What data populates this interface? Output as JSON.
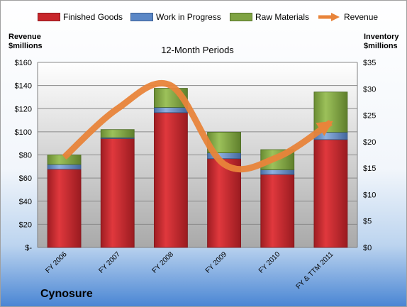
{
  "brand": "Cynosure",
  "colors": {
    "finished_goods": "#c8262b",
    "work_in_progress": "#5b87c6",
    "raw_materials": "#7fa343",
    "revenue_line": "#e8843a"
  },
  "chart_data": {
    "type": "bar",
    "stacked": true,
    "title": "12-Month Periods",
    "ylabel_left": "Revenue\n$millions",
    "ylabel_right": "Inventory\n$millions",
    "categories": [
      "FY 2006",
      "FY 2007",
      "FY 2008",
      "FY 2009",
      "FY 2010",
      "FY & TTM 2011"
    ],
    "series": [
      {
        "name": "Finished Goods",
        "axis": "right",
        "values": [
          14.8,
          20.6,
          25.5,
          16.8,
          13.8,
          20.4
        ]
      },
      {
        "name": "Work in Progress",
        "axis": "right",
        "values": [
          0.9,
          0.2,
          1.0,
          1.1,
          0.9,
          1.4
        ]
      },
      {
        "name": "Raw Materials",
        "axis": "right",
        "values": [
          1.8,
          1.5,
          3.6,
          3.9,
          3.8,
          7.6
        ]
      }
    ],
    "line_series": {
      "name": "Revenue",
      "axis": "left",
      "type": "smooth-line",
      "values": [
        78,
        120,
        140,
        72,
        78,
        108
      ]
    },
    "ylim_left": [
      0,
      160
    ],
    "ylim_right": [
      0,
      35
    ],
    "yticks_left": [
      "$-",
      "$20",
      "$40",
      "$60",
      "$80",
      "$100",
      "$120",
      "$140",
      "$160"
    ],
    "yticks_right": [
      "$0",
      "$5",
      "$10",
      "$15",
      "$20",
      "$25",
      "$30",
      "$35"
    ],
    "grid": true,
    "legend_position": "top"
  }
}
